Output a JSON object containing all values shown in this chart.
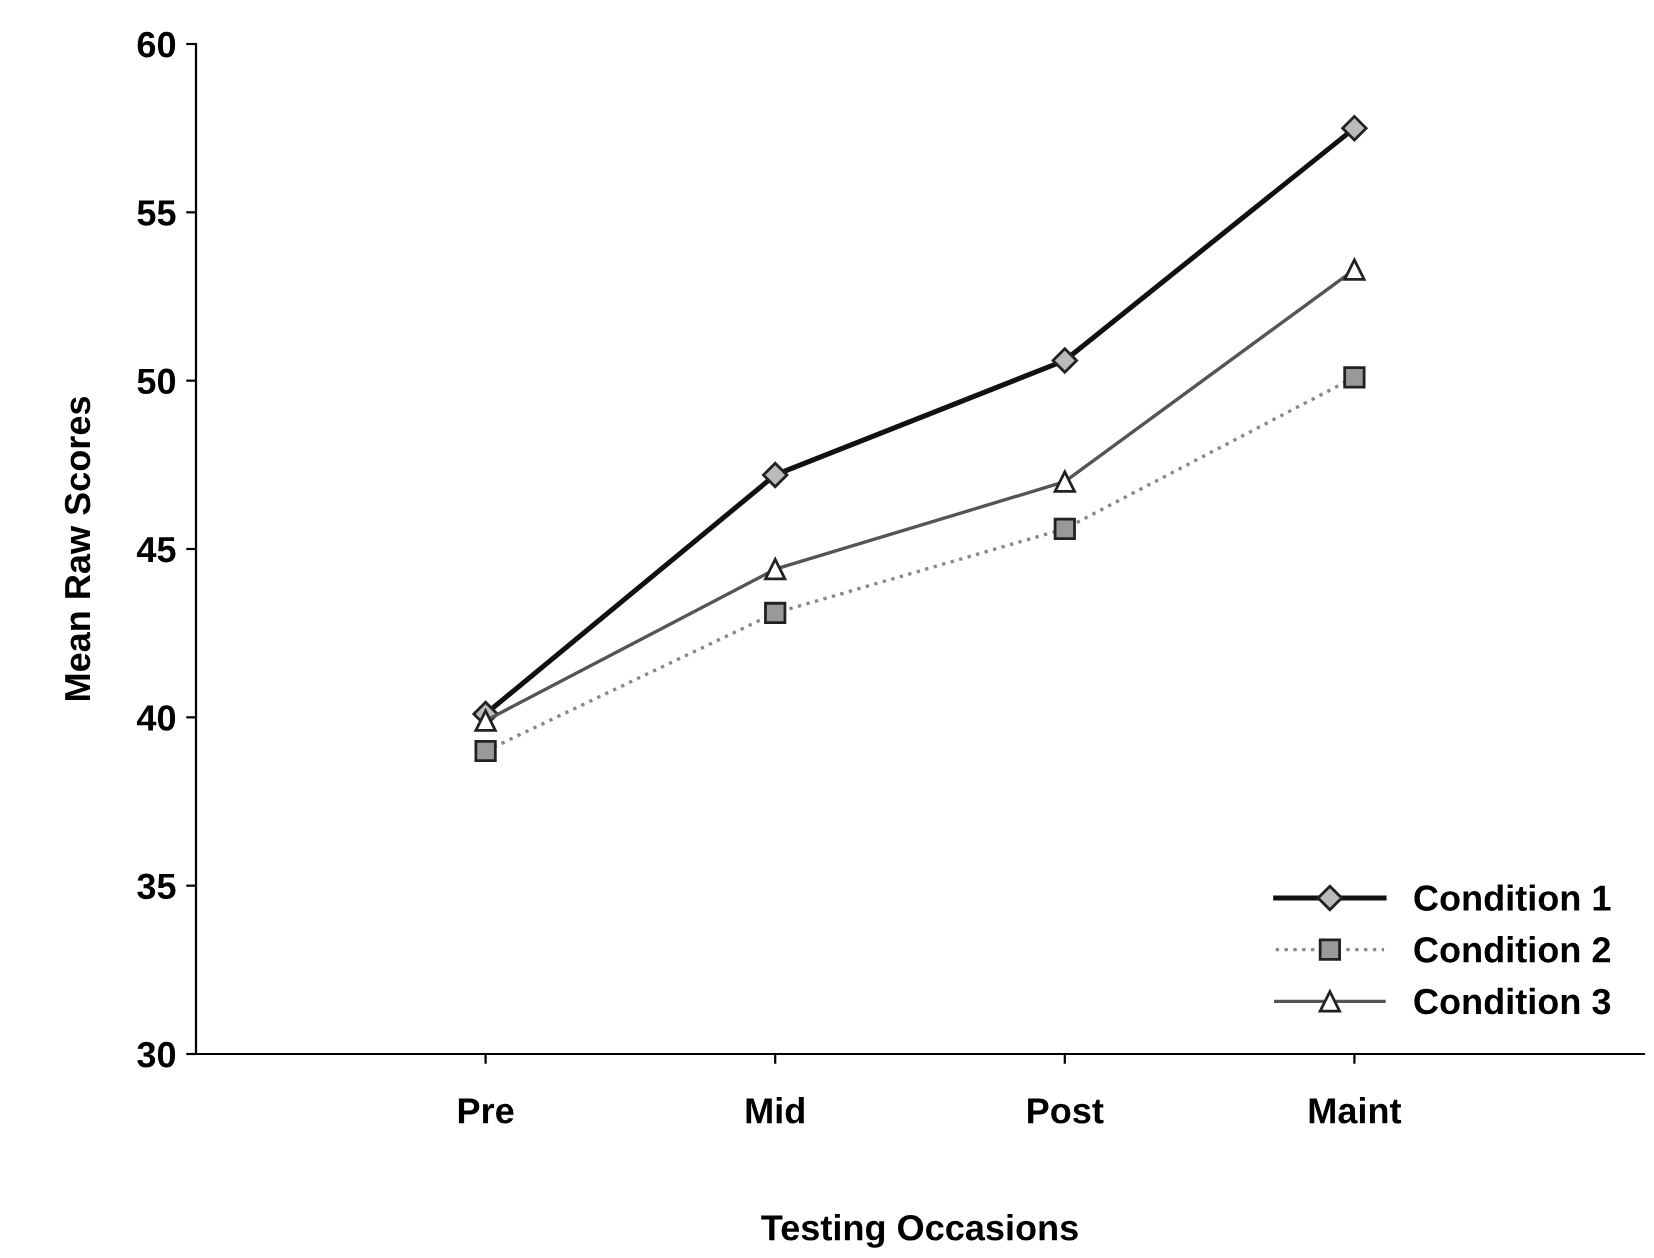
{
  "chart_data": {
    "type": "line",
    "xlabel": "Testing Occasions",
    "ylabel": "Mean Raw Scores",
    "categories": [
      "Pre",
      "Mid",
      "Post",
      "Maint"
    ],
    "series": [
      {
        "name": "Condition 1",
        "color": "#111111",
        "values": [
          40.1,
          47.2,
          50.6,
          57.5
        ],
        "marker": "diamond",
        "line_style": "solid"
      },
      {
        "name": "Condition 2",
        "color": "#888888",
        "values": [
          39.0,
          43.1,
          45.6,
          50.1
        ],
        "marker": "square",
        "line_style": "dotted"
      },
      {
        "name": "Condition 3",
        "color": "#555555",
        "values": [
          39.9,
          44.4,
          47.0,
          53.3
        ],
        "marker": "triangle",
        "line_style": "solid"
      }
    ],
    "ylim": [
      30,
      60
    ],
    "yticks": [
      30,
      35,
      40,
      45,
      50,
      55,
      60
    ],
    "grid": false,
    "legend": "bottom right"
  }
}
